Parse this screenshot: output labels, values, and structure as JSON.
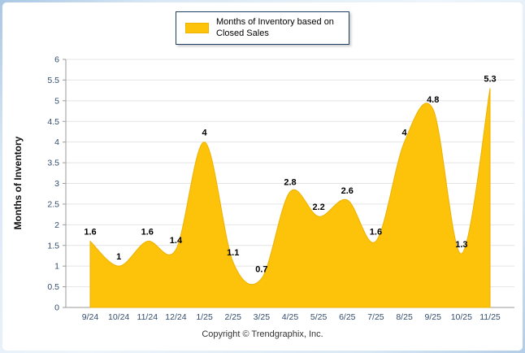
{
  "legend": {
    "label": "Months of Inventory based on Closed Sales"
  },
  "chart_data": {
    "type": "area",
    "title": "Months of Inventory based on Closed Sales",
    "categories": [
      "9/24",
      "10/24",
      "11/24",
      "12/24",
      "1/25",
      "2/25",
      "3/25",
      "4/25",
      "5/25",
      "6/25",
      "7/25",
      "8/25",
      "9/25",
      "10/25",
      "11/25"
    ],
    "values": [
      1.6,
      1,
      1.6,
      1.4,
      4,
      1.1,
      0.7,
      2.8,
      2.2,
      2.6,
      1.6,
      4,
      4.8,
      1.3,
      5.3
    ],
    "xlabel": "",
    "ylabel": "Months of Inventory",
    "ylim": [
      0,
      6
    ],
    "y_ticks": [
      0,
      0.5,
      1,
      1.5,
      2,
      2.5,
      3,
      3.5,
      4,
      4.5,
      5,
      5.5,
      6
    ],
    "grid": true,
    "legend_position": "top-center",
    "area_color": "#fdc30b",
    "area_stroke": "#edb100",
    "label_color": "#000000",
    "tick_color": "#334d6e"
  },
  "footer": {
    "copyright": "Copyright © Trendgraphix, Inc."
  }
}
